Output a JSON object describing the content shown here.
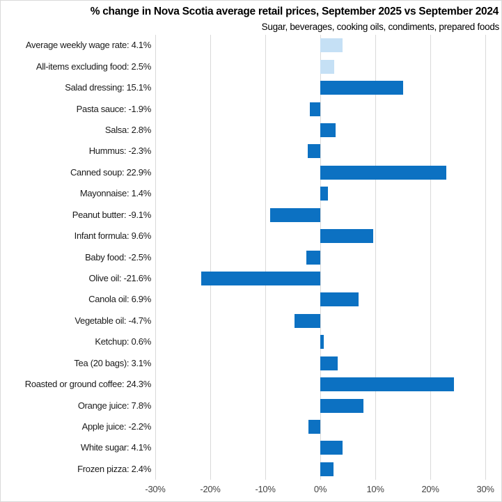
{
  "chart_data": {
    "type": "bar",
    "orientation": "horizontal",
    "title": "% change in Nova Scotia average retail prices, September 2025 vs September 2024",
    "subtitle": "Sugar, beverages, cooking oils, condiments, prepared foods",
    "categories": [
      "Average weekly wage rate: 4.1%",
      "All-items excluding food: 2.5%",
      "Salad dressing: 15.1%",
      "Pasta sauce: -1.9%",
      "Salsa: 2.8%",
      "Hummus: -2.3%",
      "Canned soup: 22.9%",
      "Mayonnaise: 1.4%",
      "Peanut butter: -9.1%",
      "Infant formula: 9.6%",
      "Baby food: -2.5%",
      "Olive oil: -21.6%",
      "Canola oil: 6.9%",
      "Vegetable oil: -4.7%",
      "Ketchup: 0.6%",
      "Tea (20 bags): 3.1%",
      "Roasted or ground coffee: 24.3%",
      "Orange juice: 7.8%",
      "Apple juice: -2.2%",
      "White sugar: 4.1%",
      "Frozen pizza: 2.4%"
    ],
    "values": [
      4.1,
      2.5,
      15.1,
      -1.9,
      2.8,
      -2.3,
      22.9,
      1.4,
      -9.1,
      9.6,
      -2.5,
      -21.6,
      6.9,
      -4.7,
      0.6,
      3.1,
      24.3,
      7.8,
      -2.2,
      4.1,
      2.4
    ],
    "light_bar_indices": [
      0,
      1
    ],
    "axis": {
      "min": -30,
      "max": 30,
      "ticks": [
        -30,
        -20,
        -10,
        0,
        10,
        20,
        30
      ],
      "tick_labels": [
        "-30%",
        "-20%",
        "-10%",
        "0%",
        "10%",
        "20%",
        "30%"
      ]
    },
    "grid": true,
    "legend": "none",
    "colors": {
      "bar": "#0c71c2",
      "light_bar": "#c5e0f5",
      "gridline": "#d9d9d9",
      "axis_label": "#444444",
      "category_label": "#1a1a1a"
    }
  }
}
